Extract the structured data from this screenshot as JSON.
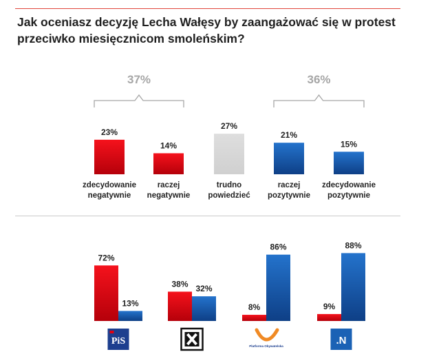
{
  "title": "Jak oceniasz decyzję Lecha Wałęsy by zaangażować się w protest przeciwko miesięcznicom smoleńskim?",
  "colors": {
    "red": "#e3000f",
    "blue": "#1b62b5",
    "grey": "#d9d9d9",
    "bracket": "#a6a6a6"
  },
  "chart_data": [
    {
      "type": "bar",
      "categories": [
        "zdecydowanie negatywnie",
        "raczej negatywnie",
        "trudno powiedzieć",
        "raczej pozytywnie",
        "zdecydowanie pozytywnie"
      ],
      "category_lines": [
        [
          "zdecydowanie",
          "negatywnie"
        ],
        [
          "raczej",
          "negatywnie"
        ],
        [
          "trudno",
          "powiedzieć"
        ],
        [
          "raczej",
          "pozytywnie"
        ],
        [
          "zdecydowanie",
          "pozytywnie"
        ]
      ],
      "values": [
        23,
        14,
        27,
        21,
        15
      ],
      "value_labels": [
        "23%",
        "14%",
        "27%",
        "21%",
        "15%"
      ],
      "bar_colors": [
        "red",
        "red",
        "grey",
        "blue",
        "blue"
      ],
      "groups": [
        {
          "label": "37%",
          "value": 37,
          "spans": [
            0,
            1
          ]
        },
        {
          "label": "36%",
          "value": 36,
          "spans": [
            3,
            4
          ]
        }
      ]
    },
    {
      "type": "bar",
      "categories": [
        "PiS",
        "Kukiz'15",
        "Platforma Obywatelska",
        "Nowoczesna"
      ],
      "category_icons": [
        "pis-logo",
        "kukiz-logo",
        "po-logo",
        "nowoczesna-logo"
      ],
      "logo_text": {
        "pis": "PiS",
        "nowoczesna": ".N",
        "po": "Platforma Obywatelska"
      },
      "series": [
        {
          "color": "red",
          "values": [
            72,
            38,
            8,
            9
          ],
          "labels": [
            "72%",
            "38%",
            "8%",
            "9%"
          ]
        },
        {
          "color": "blue",
          "values": [
            13,
            32,
            86,
            88
          ],
          "labels": [
            "13%",
            "32%",
            "86%",
            "88%"
          ]
        }
      ]
    }
  ]
}
